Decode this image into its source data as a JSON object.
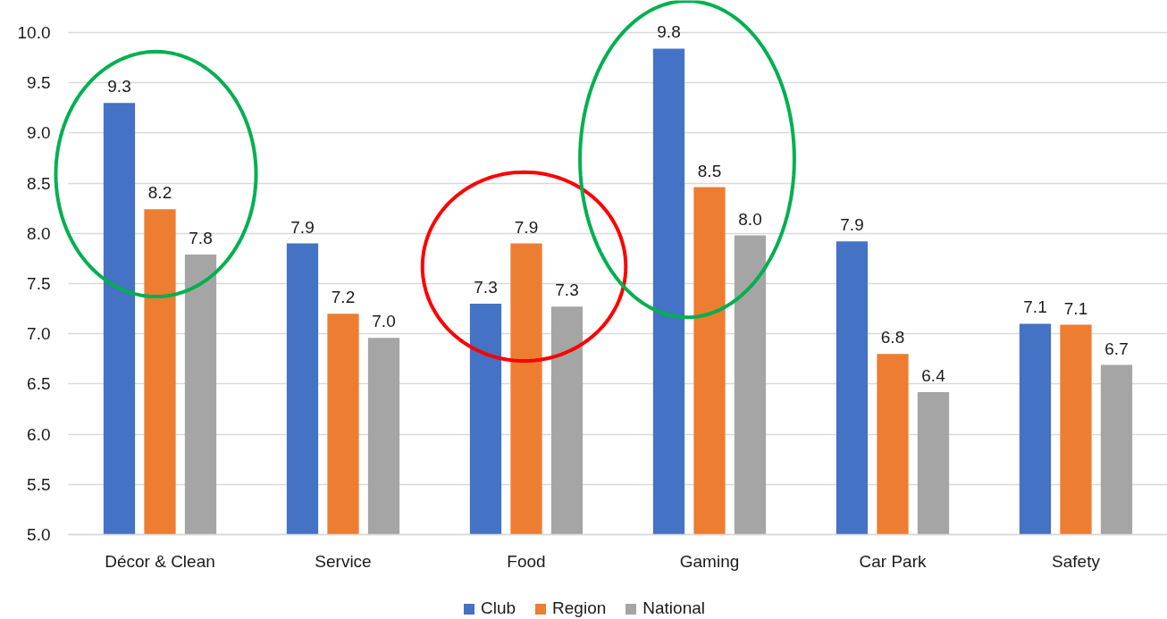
{
  "chart_data": {
    "type": "bar",
    "categories": [
      "Décor & Clean",
      "Service",
      "Food",
      "Gaming",
      "Car Park",
      "Safety"
    ],
    "series": [
      {
        "name": "Club",
        "color": "#4472c4",
        "values": [
          9.3,
          7.9,
          7.3,
          9.84,
          7.92,
          7.1
        ],
        "value_labels": [
          "9.3",
          "7.9",
          "7.3",
          "9.8",
          "7.9",
          "7.1"
        ]
      },
      {
        "name": "Region",
        "color": "#ed7d31",
        "values": [
          8.24,
          7.2,
          7.9,
          8.46,
          6.8,
          7.09
        ],
        "value_labels": [
          "8.2",
          "7.2",
          "7.9",
          "8.5",
          "6.8",
          "7.1"
        ]
      },
      {
        "name": "National",
        "color": "#a5a5a5",
        "values": [
          7.79,
          6.96,
          7.27,
          7.98,
          6.42,
          6.69
        ],
        "value_labels": [
          "7.8",
          "7.0",
          "7.3",
          "8.0",
          "6.4",
          "6.7"
        ]
      }
    ],
    "ylim": [
      5,
      10
    ],
    "yticks": [
      {
        "value": 5,
        "label": "5.0"
      },
      {
        "value": 5.5,
        "label": "5.5"
      },
      {
        "value": 6,
        "label": "6.0"
      },
      {
        "value": 6.5,
        "label": "6.5"
      },
      {
        "value": 7,
        "label": "7.0"
      },
      {
        "value": 7.5,
        "label": "7.5"
      },
      {
        "value": 8,
        "label": "8.0"
      },
      {
        "value": 8.5,
        "label": "8.5"
      },
      {
        "value": 9,
        "label": "9.0"
      },
      {
        "value": 9.5,
        "label": "9.5"
      },
      {
        "value": 10,
        "label": "10.0"
      }
    ],
    "grid": "y",
    "legend": "bottom"
  }
}
